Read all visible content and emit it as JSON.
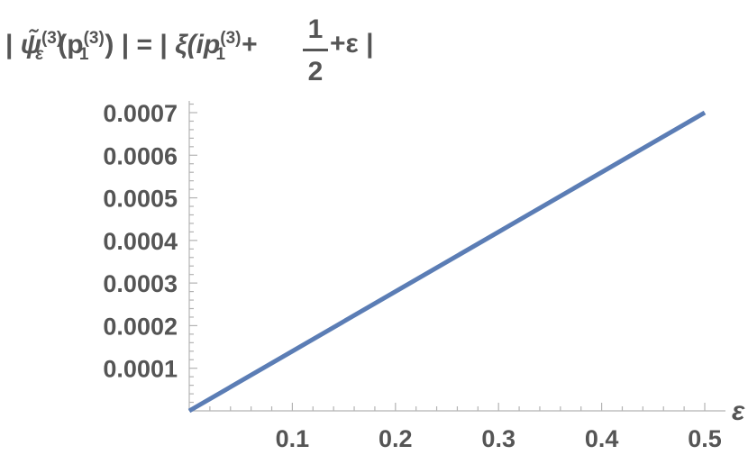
{
  "chart_data": {
    "type": "line",
    "title": "| ψ̃ε(3)(p1(3)) | = | ξ(ip1(3)+ 1/2 +ε |",
    "title_parts": {
      "abs_open": "|",
      "psi": "ψ̃",
      "psi_sup": "(3)",
      "psi_sub": "ε",
      "paren_open": "(p",
      "p_sup": "(3)",
      "p_sub": "1",
      "paren_close": ")",
      "abs_close_eq": "| = |",
      "xi": "ξ(ip",
      "ip_sup": "(3)",
      "ip_sub": "1",
      "plus1": "+",
      "frac_num": "1",
      "frac_den": "2",
      "plus_eps": "+ε |"
    },
    "xlabel": "ε",
    "ylabel": "",
    "xlim": [
      0,
      0.5
    ],
    "ylim": [
      0,
      0.0007
    ],
    "x_ticks": [
      0.1,
      0.2,
      0.3,
      0.4,
      0.5
    ],
    "x_tick_labels": [
      "0.1",
      "0.2",
      "0.3",
      "0.4",
      "0.5"
    ],
    "y_ticks": [
      0.0001,
      0.0002,
      0.0003,
      0.0004,
      0.0005,
      0.0006,
      0.0007
    ],
    "y_tick_labels": [
      "0.0001",
      "0.0002",
      "0.0003",
      "0.0004",
      "0.0005",
      "0.0006",
      "0.0007"
    ],
    "grid": false,
    "series": [
      {
        "color": "#5b7db5",
        "x": [
          0,
          0.1,
          0.2,
          0.3,
          0.4,
          0.5
        ],
        "y": [
          0,
          0.00014,
          0.00028,
          0.00042,
          0.00056,
          0.0007
        ]
      }
    ]
  }
}
